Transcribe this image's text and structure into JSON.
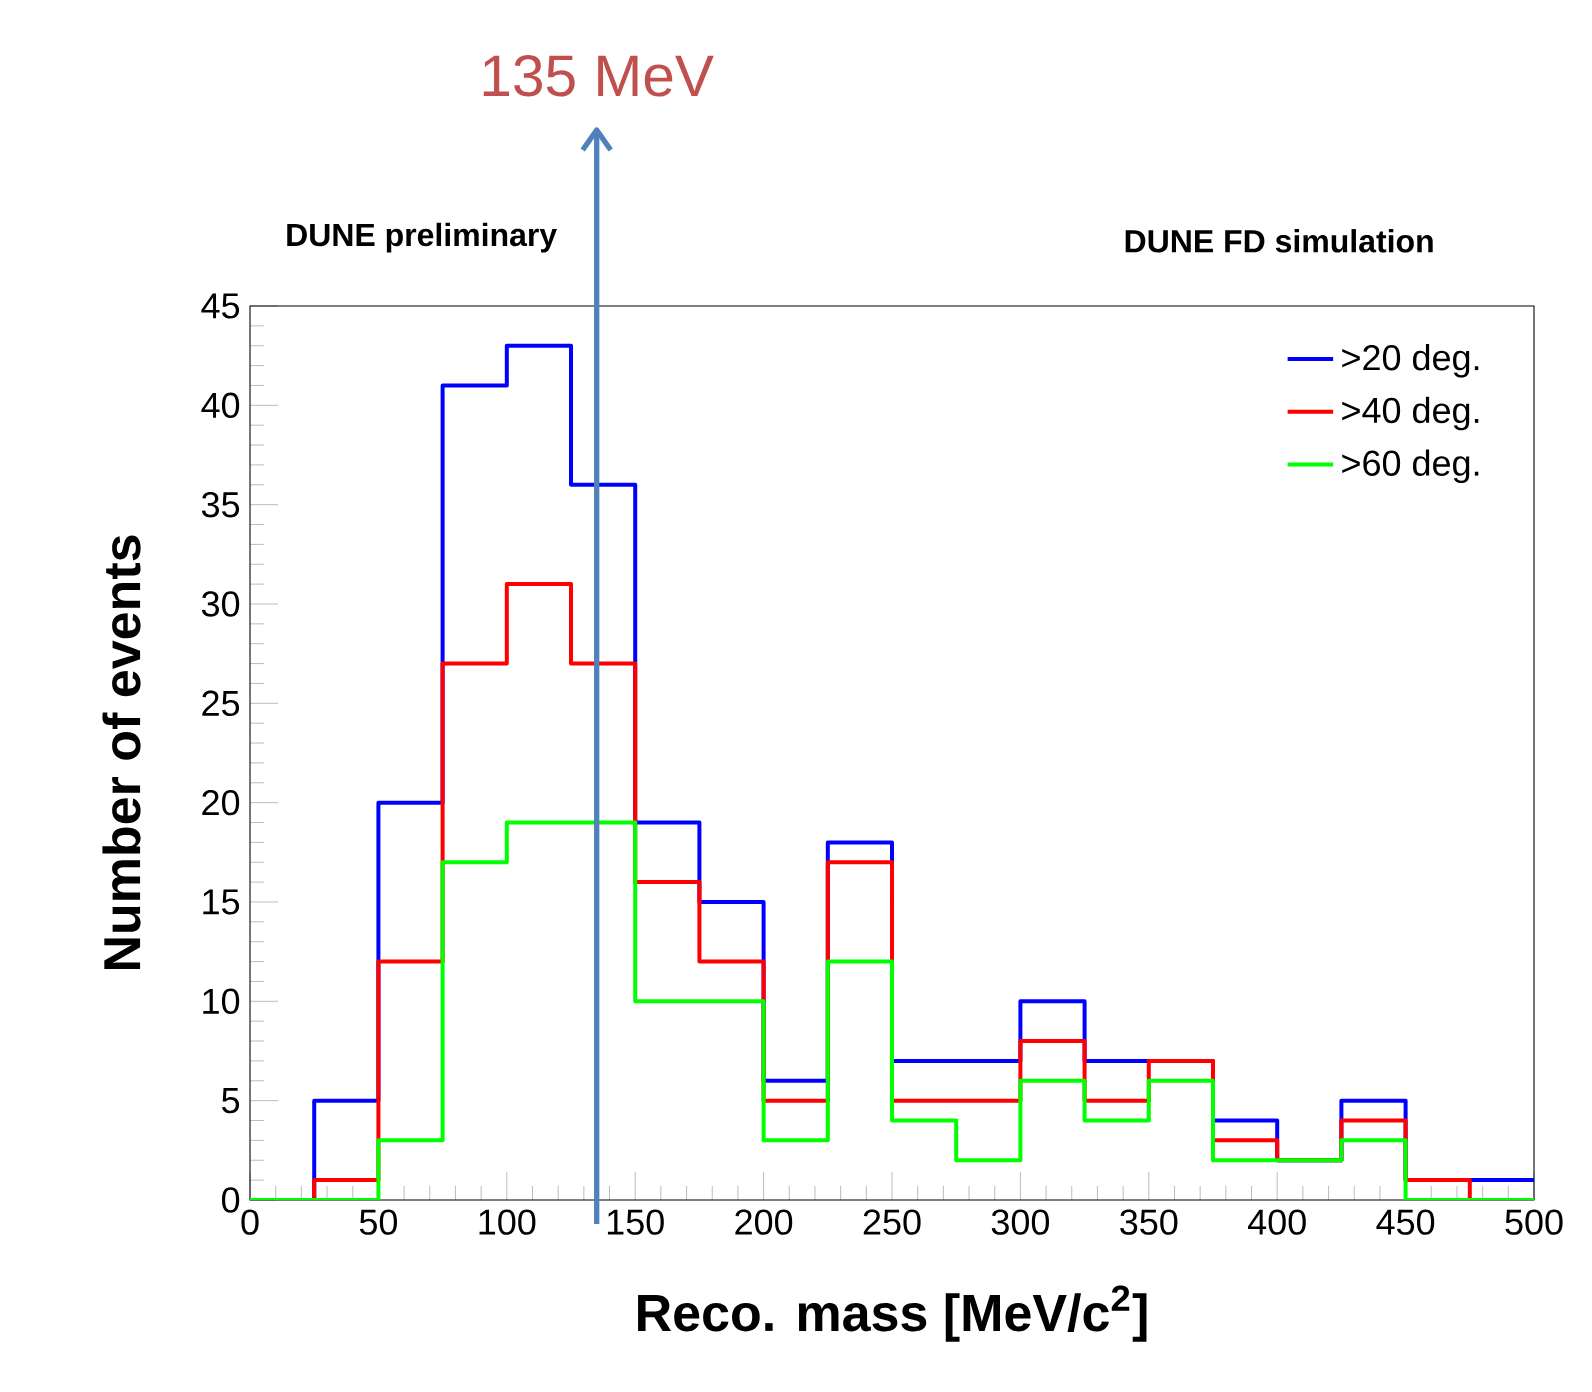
{
  "chart_data": {
    "type": "histogram",
    "xlabel": "Reco. mass [MeV/c$^{2}$]",
    "ylabel": "Number of events",
    "bins": [
      0,
      25,
      50,
      75,
      100,
      125,
      150,
      175,
      200,
      225,
      250,
      275,
      300,
      325,
      350,
      375,
      400,
      425,
      450,
      475,
      500
    ],
    "series": [
      {
        "name": ">20 deg.",
        "color": "#0000ff",
        "values": [
          0,
          5,
          20,
          41,
          43,
          36,
          19,
          15,
          6,
          18,
          7,
          7,
          10,
          7,
          7,
          4,
          2,
          5,
          1,
          1
        ]
      },
      {
        "name": ">40 deg.",
        "color": "#ff0000",
        "values": [
          0,
          1,
          12,
          27,
          31,
          27,
          16,
          12,
          5,
          17,
          5,
          5,
          8,
          5,
          7,
          3,
          2,
          4,
          1,
          0
        ]
      },
      {
        "name": ">60 deg.",
        "color": "#00ff00",
        "values": [
          0,
          0,
          3,
          17,
          19,
          19,
          10,
          10,
          3,
          12,
          4,
          2,
          6,
          4,
          6,
          2,
          2,
          3,
          0,
          0
        ]
      }
    ],
    "xlim": [
      0,
      500
    ],
    "xticks": [
      0,
      50,
      100,
      150,
      200,
      250,
      300,
      350,
      400,
      450,
      500
    ],
    "ylim": [
      0,
      45
    ],
    "yticks": [
      0,
      5,
      10,
      15,
      20,
      25,
      30,
      35,
      40,
      45
    ],
    "ref_lines": [
      {
        "axis": "x",
        "value": 135,
        "label": "135 MeV",
        "color": "#4f81bd"
      }
    ],
    "annotations": [
      "DUNE preliminary",
      "DUNE FD simulation"
    ],
    "legend": "top right",
    "grid": false
  }
}
